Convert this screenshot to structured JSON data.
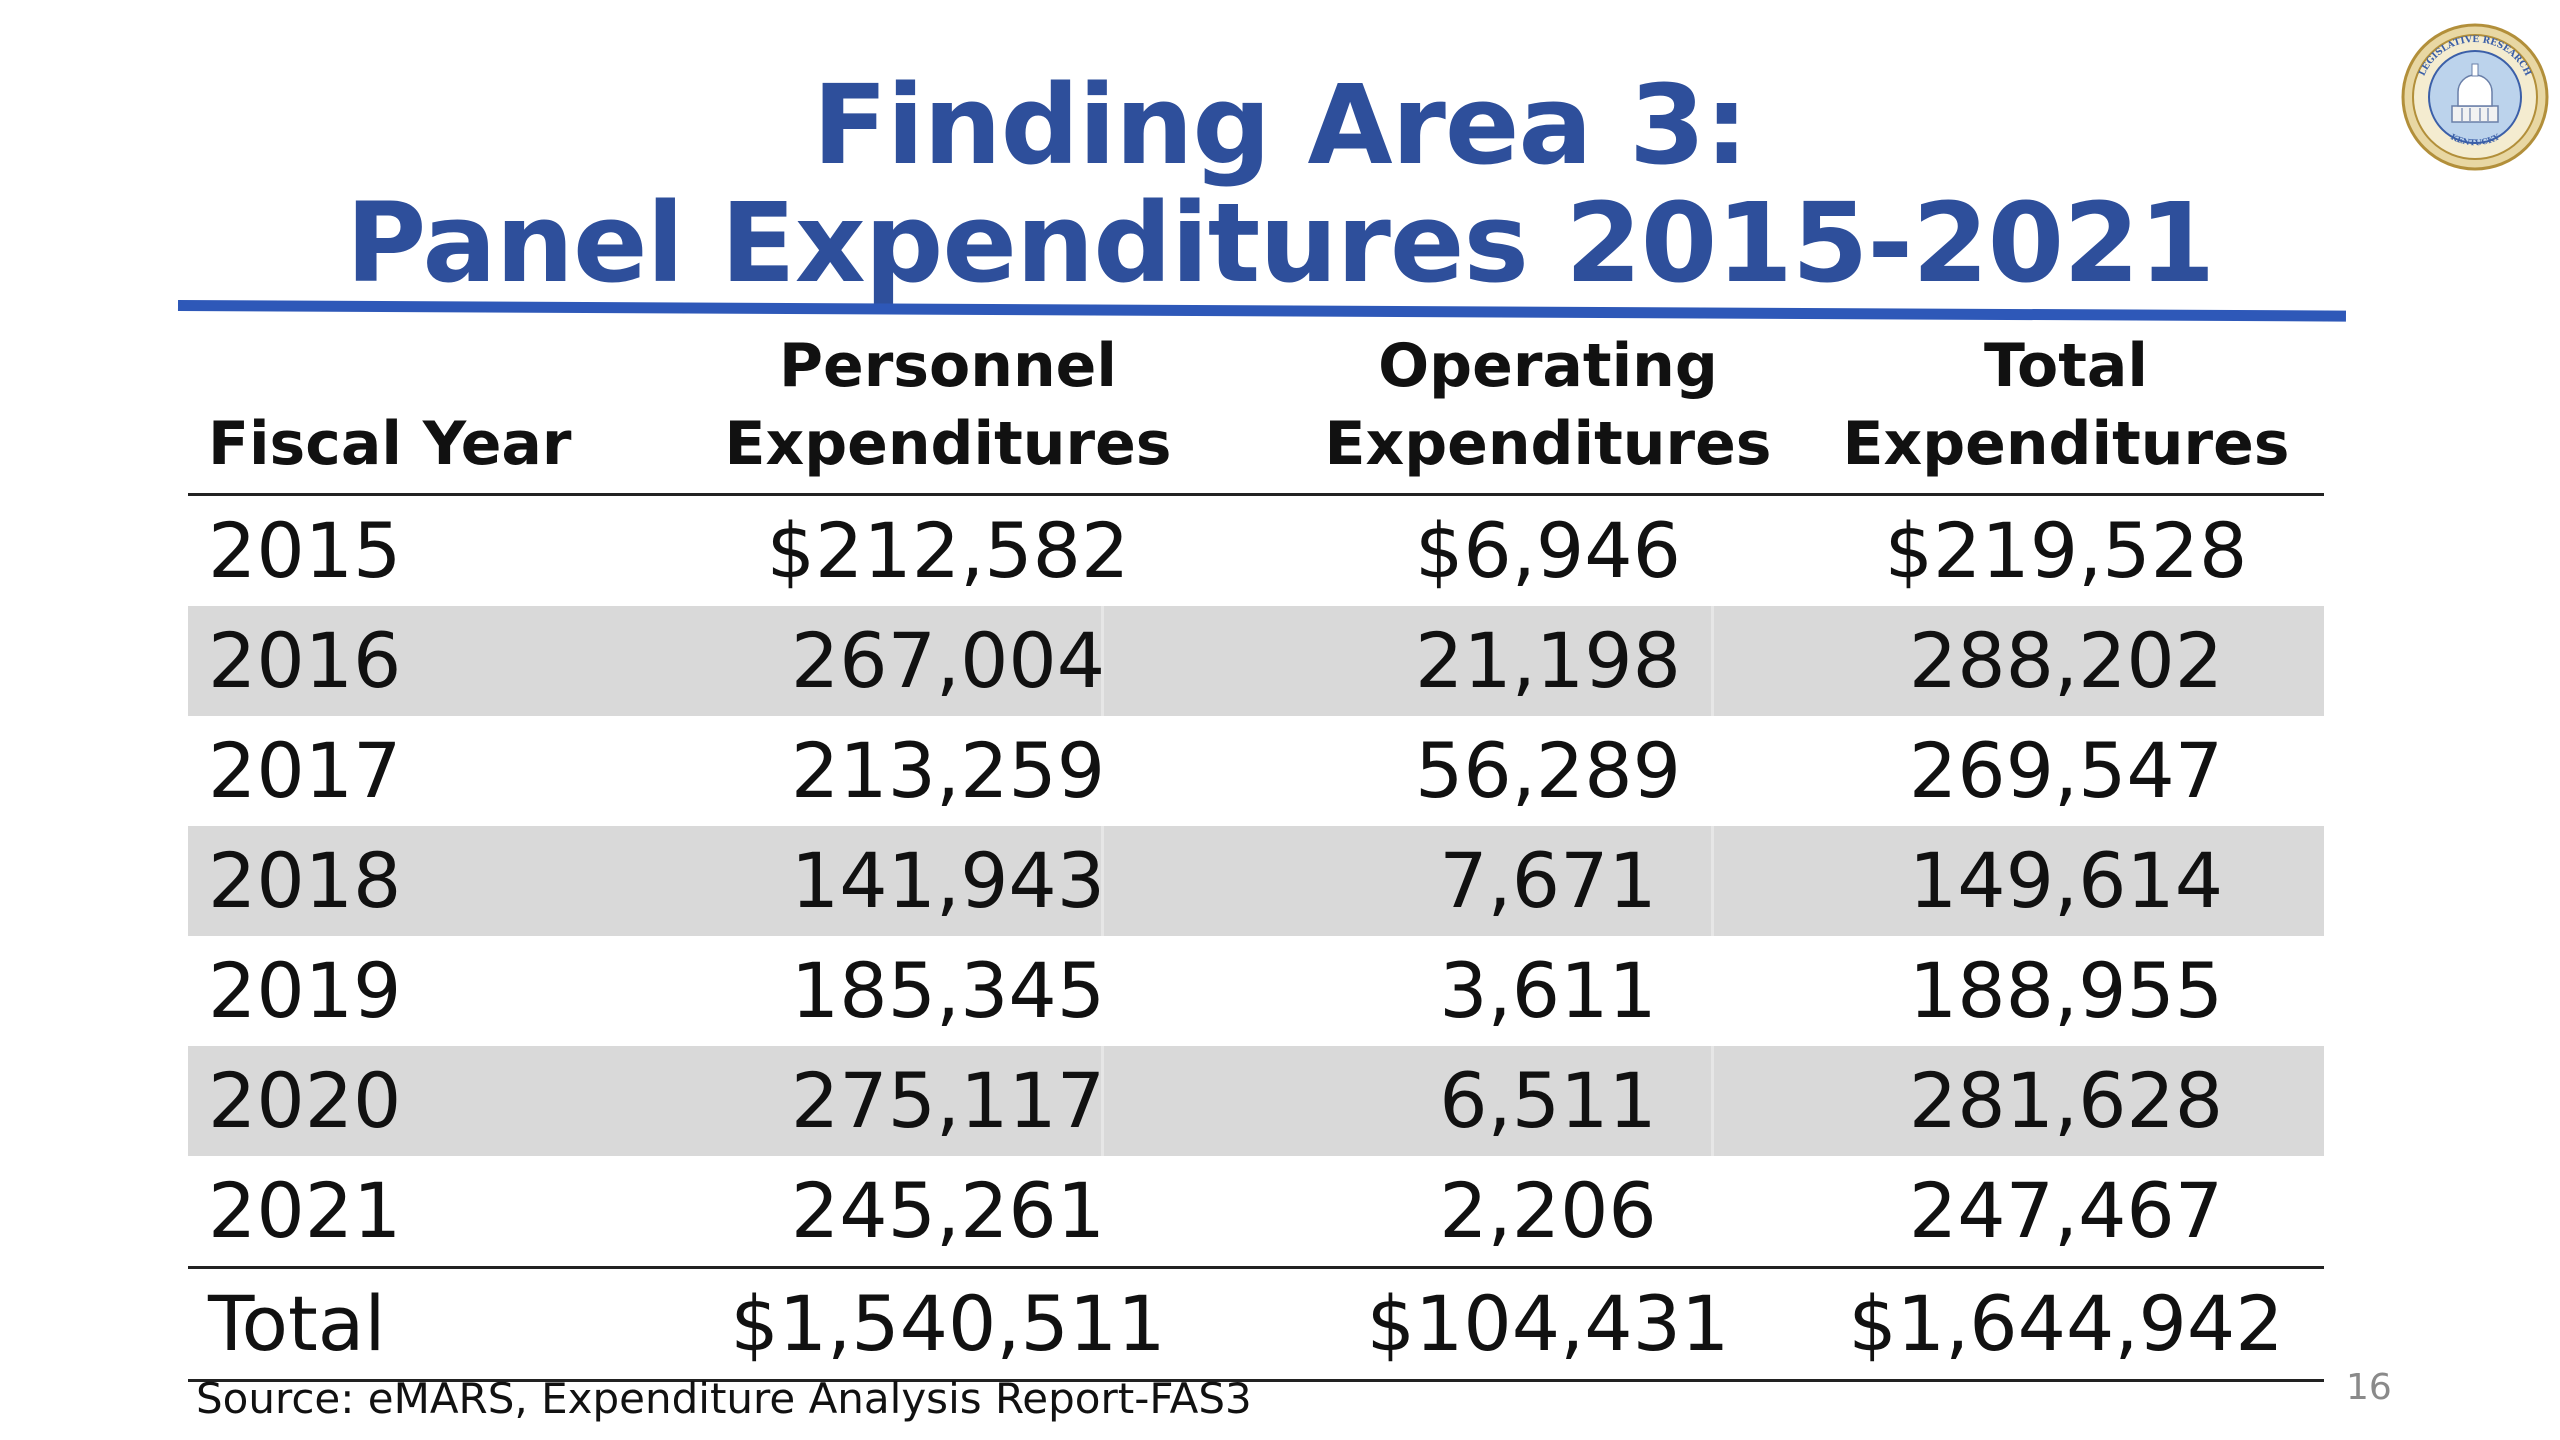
{
  "slide": {
    "title_line_1": "Finding Area 3:",
    "title_line_2": "Panel Expenditures 2015-2021",
    "logo_icon": "legislative-research-commission-seal-icon",
    "logo_text": "LEGISLATIVE RESEARCH COMMISSION · KENTUCKY",
    "source": "Source: eMARS, Expenditure Analysis Report-FAS3",
    "page_number": "16",
    "accent_color": "#2e4f9b",
    "rule_color": "#2e58b8",
    "shade_color": "#d9d9d9"
  },
  "table": {
    "headers": {
      "year": "Fiscal Year",
      "personnel_1": "Personnel",
      "personnel_2": "Expenditures",
      "operating_1": "Operating",
      "operating_2": "Expenditures",
      "total": "Total Expenditures"
    },
    "rows": [
      {
        "year": "2015",
        "personnel": "$212,582",
        "operating": "$6,946",
        "total": "$219,528"
      },
      {
        "year": "2016",
        "personnel": "267,004",
        "operating": "21,198",
        "total": "288,202"
      },
      {
        "year": "2017",
        "personnel": "213,259",
        "operating": "56,289",
        "total": "269,547"
      },
      {
        "year": "2018",
        "personnel": "141,943",
        "operating": "7,671",
        "total": "149,614"
      },
      {
        "year": "2019",
        "personnel": "185,345",
        "operating": "3,611",
        "total": "188,955"
      },
      {
        "year": "2020",
        "personnel": "275,117",
        "operating": "6,511",
        "total": "281,628"
      },
      {
        "year": "2021",
        "personnel": "245,261",
        "operating": "2,206",
        "total": "247,467"
      }
    ],
    "total_row": {
      "year": "Total",
      "personnel": "$1,540,511",
      "operating": "$104,431",
      "total": "$1,644,942"
    }
  }
}
